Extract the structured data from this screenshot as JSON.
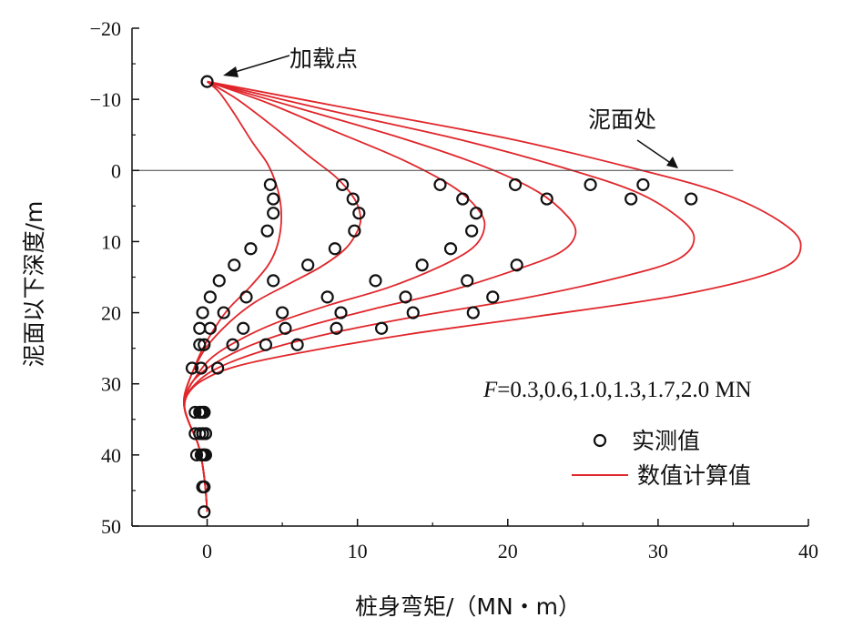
{
  "chart_data": {
    "type": "line",
    "xlabel": "桩身弯矩/（MN・m）",
    "ylabel": "泥面以下深度/m",
    "xlim": [
      -5,
      40
    ],
    "ylim": [
      50,
      -20
    ],
    "x_ticks": [
      "0",
      "10",
      "20",
      "30",
      "40"
    ],
    "y_ticks": [
      "-20",
      "-10",
      "0",
      "10",
      "20",
      "30",
      "40",
      "50"
    ],
    "annotations": {
      "load_point": "加载点",
      "mudline": "泥面处"
    },
    "load_note": {
      "symbol": "F",
      "text": "=0.3,0.6,1.0,1.3,1.7,2.0 MN"
    },
    "legend": {
      "measured": "实测值",
      "computed": "数值计算值",
      "position": "right"
    },
    "colors": {
      "computed_line": "#e0262b",
      "measured_marker": "#111111"
    },
    "series": [
      {
        "load": 0.3,
        "computed": [
          [
            0,
            -12.5
          ],
          [
            0.8,
            -11
          ],
          [
            1.8,
            -8
          ],
          [
            3,
            -4
          ],
          [
            4,
            -1
          ],
          [
            4.6,
            2
          ],
          [
            4.9,
            5
          ],
          [
            4.9,
            8
          ],
          [
            4.6,
            11
          ],
          [
            4.0,
            13.5
          ],
          [
            2.8,
            16.5
          ],
          [
            1.4,
            19.5
          ],
          [
            0.4,
            22.5
          ],
          [
            -0.4,
            25.5
          ],
          [
            -1.0,
            28.5
          ],
          [
            -1.5,
            31.5
          ],
          [
            -1.5,
            33.5
          ],
          [
            -1.2,
            35.5
          ],
          [
            -0.6,
            38.5
          ],
          [
            -0.3,
            41.5
          ],
          [
            -0.1,
            45
          ],
          [
            0,
            48
          ]
        ],
        "measured": [
          [
            0,
            -12.5
          ],
          [
            4.2,
            2
          ],
          [
            4.4,
            4
          ],
          [
            4.4,
            6
          ],
          [
            4,
            8.5
          ],
          [
            2.9,
            11
          ],
          [
            1.8,
            13.3
          ],
          [
            0.8,
            15.5
          ],
          [
            0.2,
            17.8
          ],
          [
            -0.3,
            20
          ],
          [
            -0.5,
            22.2
          ],
          [
            -0.5,
            24.5
          ],
          [
            -1.0,
            27.8
          ],
          [
            -0.8,
            34
          ],
          [
            -0.8,
            37
          ],
          [
            -0.7,
            40
          ],
          [
            -0.3,
            44.5
          ],
          [
            -0.2,
            48
          ]
        ]
      },
      {
        "load": 0.6,
        "computed": [
          [
            0,
            -12.5
          ],
          [
            2,
            -10
          ],
          [
            4.5,
            -6
          ],
          [
            6.8,
            -2
          ],
          [
            8.6,
            1
          ],
          [
            9.8,
            4
          ],
          [
            10.2,
            6.5
          ],
          [
            10,
            8.5
          ],
          [
            9.2,
            11
          ],
          [
            7.6,
            13.5
          ],
          [
            5.4,
            16
          ],
          [
            3.2,
            18.5
          ],
          [
            1.4,
            21.5
          ],
          [
            -0.1,
            25
          ],
          [
            -1.0,
            28.5
          ],
          [
            -1.5,
            31.5
          ],
          [
            -1.5,
            33.5
          ],
          [
            -1.2,
            35.5
          ],
          [
            -0.6,
            38.5
          ],
          [
            -0.3,
            41.5
          ],
          [
            -0.1,
            45
          ],
          [
            0,
            48
          ]
        ],
        "measured": [
          [
            9,
            2
          ],
          [
            9.7,
            4
          ],
          [
            10.1,
            6
          ],
          [
            9.8,
            8.5
          ],
          [
            8.5,
            11
          ],
          [
            6.7,
            13.3
          ],
          [
            4.4,
            15.5
          ],
          [
            2.6,
            17.8
          ],
          [
            1.1,
            20
          ],
          [
            0.2,
            22.2
          ],
          [
            -0.2,
            24.5
          ],
          [
            -0.4,
            27.8
          ],
          [
            -0.5,
            34
          ],
          [
            -0.5,
            37
          ],
          [
            -0.4,
            40
          ],
          [
            -0.2,
            44.5
          ]
        ]
      },
      {
        "load": 1.0,
        "computed": [
          [
            0,
            -12.5
          ],
          [
            4,
            -9.5
          ],
          [
            8.5,
            -5.5
          ],
          [
            13,
            -1.5
          ],
          [
            16.5,
            2.5
          ],
          [
            18.2,
            6
          ],
          [
            18.4,
            8.5
          ],
          [
            17.6,
            11
          ],
          [
            15.5,
            13.5
          ],
          [
            12,
            16.5
          ],
          [
            8,
            19
          ],
          [
            4.5,
            21.5
          ],
          [
            2,
            24
          ],
          [
            0.2,
            26.5
          ],
          [
            -0.9,
            29.5
          ],
          [
            -1.4,
            31.5
          ],
          [
            -1.5,
            33.5
          ],
          [
            -1.2,
            35.5
          ],
          [
            -0.6,
            38.5
          ],
          [
            -0.3,
            41.5
          ],
          [
            -0.1,
            45
          ],
          [
            0,
            48
          ]
        ],
        "measured": [
          [
            15.5,
            2
          ],
          [
            17,
            4
          ],
          [
            17.9,
            6
          ],
          [
            17.6,
            8.5
          ],
          [
            16.2,
            11
          ],
          [
            14.3,
            13.3
          ],
          [
            11.2,
            15.5
          ],
          [
            8.0,
            17.8
          ],
          [
            5.0,
            20
          ],
          [
            2.4,
            22.2
          ],
          [
            1.7,
            24.5
          ],
          [
            0.7,
            27.8
          ],
          [
            -0.3,
            34
          ],
          [
            -0.1,
            37
          ],
          [
            -0.1,
            40
          ]
        ]
      },
      {
        "load": 1.3,
        "computed": [
          [
            0,
            -12.5
          ],
          [
            6.5,
            -8.5
          ],
          [
            13,
            -4.5
          ],
          [
            18.5,
            -0.5
          ],
          [
            22,
            3
          ],
          [
            24,
            6.5
          ],
          [
            24.5,
            9
          ],
          [
            23.5,
            11.5
          ],
          [
            20.5,
            14
          ],
          [
            16,
            17
          ],
          [
            11,
            19.5
          ],
          [
            6.5,
            22
          ],
          [
            3,
            24.5
          ],
          [
            0.6,
            27
          ],
          [
            -0.9,
            29.5
          ],
          [
            -1.5,
            32
          ],
          [
            -1.5,
            33.5
          ],
          [
            -1.2,
            35.5
          ],
          [
            -0.6,
            38.5
          ],
          [
            -0.3,
            41.5
          ],
          [
            -0.1,
            45
          ],
          [
            0,
            48
          ]
        ],
        "measured": [
          [
            20.5,
            2
          ],
          [
            22.6,
            4
          ],
          [
            20.6,
            13.3
          ],
          [
            17.3,
            15.5
          ],
          [
            13.2,
            17.8
          ],
          [
            8.9,
            20
          ],
          [
            5.2,
            22.2
          ],
          [
            3.9,
            24.5
          ],
          [
            -0.2,
            34
          ],
          [
            -0.1,
            37
          ],
          [
            -0.2,
            40
          ]
        ]
      },
      {
        "load": 1.7,
        "computed": [
          [
            0,
            -12.5
          ],
          [
            8,
            -8.5
          ],
          [
            16.5,
            -4.5
          ],
          [
            23.5,
            -0.5
          ],
          [
            28.5,
            3
          ],
          [
            31.3,
            6.5
          ],
          [
            32.4,
            9.5
          ],
          [
            31.3,
            12.5
          ],
          [
            27.5,
            15
          ],
          [
            21,
            18
          ],
          [
            14,
            20.5
          ],
          [
            8,
            23
          ],
          [
            3.5,
            25.5
          ],
          [
            0.5,
            28
          ],
          [
            -1,
            30.5
          ],
          [
            -1.5,
            32.5
          ],
          [
            -1.5,
            33.5
          ],
          [
            -1.2,
            35.5
          ],
          [
            -0.6,
            38.5
          ],
          [
            -0.3,
            41.5
          ],
          [
            -0.1,
            45
          ],
          [
            0,
            48
          ]
        ],
        "measured": [
          [
            25.5,
            2
          ],
          [
            28.2,
            4
          ],
          [
            19,
            17.8
          ],
          [
            13.7,
            20
          ],
          [
            8.6,
            22.2
          ],
          [
            6.0,
            24.5
          ],
          [
            -0.4,
            34
          ],
          [
            -0.3,
            37
          ],
          [
            -0.3,
            40
          ]
        ]
      },
      {
        "load": 2.0,
        "computed": [
          [
            0,
            -12.5
          ],
          [
            10,
            -8.5
          ],
          [
            20,
            -4.5
          ],
          [
            28,
            -0.5
          ],
          [
            34,
            3
          ],
          [
            38,
            7
          ],
          [
            39.5,
            10.5
          ],
          [
            38,
            14
          ],
          [
            31.5,
            17.5
          ],
          [
            22,
            20.5
          ],
          [
            13.5,
            23
          ],
          [
            6.5,
            25.5
          ],
          [
            2,
            27.5
          ],
          [
            -0.3,
            29.5
          ],
          [
            -1.3,
            31.5
          ],
          [
            -1.5,
            33.5
          ],
          [
            -1.2,
            35.5
          ],
          [
            -0.6,
            38.5
          ],
          [
            -0.3,
            41.5
          ],
          [
            -0.1,
            45
          ],
          [
            0,
            48
          ]
        ],
        "measured": [
          [
            29,
            2
          ],
          [
            32.2,
            4
          ],
          [
            17.7,
            20
          ],
          [
            11.6,
            22.2
          ],
          [
            -0.2,
            34
          ],
          [
            -0.3,
            37
          ],
          [
            -0.2,
            40
          ]
        ]
      }
    ]
  }
}
